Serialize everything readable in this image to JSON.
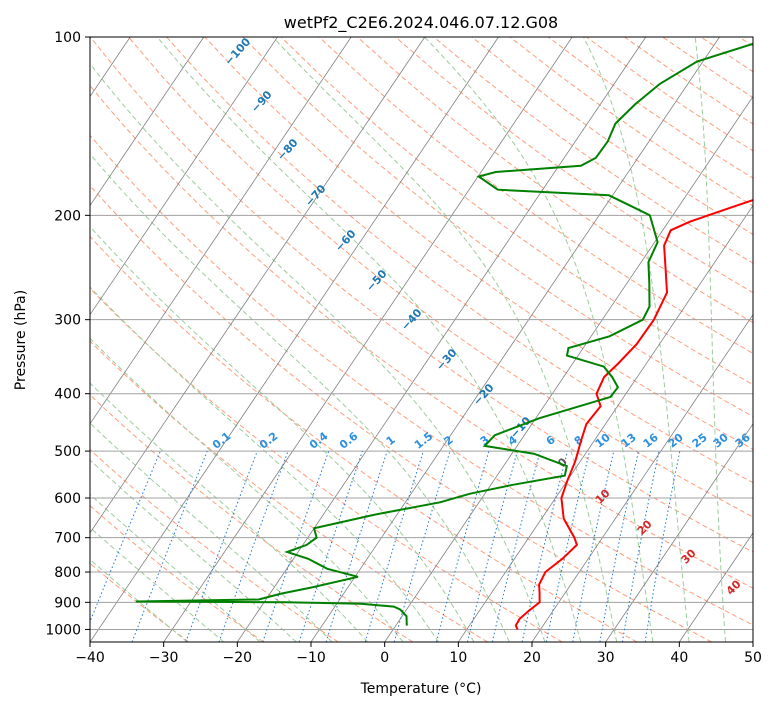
{
  "colors": {
    "temperature": "#ff0000",
    "dewpoint": "#008000",
    "isotherm": "#808080",
    "isobar": "#a0a0a0",
    "dry_adiabat": "#ff9c7a",
    "moist_adiabat": "#9ccc9c",
    "mixing_ratio": "#1f77d4",
    "dry_label": "#1f77b4",
    "moist_label": "#d62728"
  },
  "chart_data": {
    "type": "line",
    "title": "wetPf2_C2E6.2024.046.07.12.G08",
    "xlabel": "Temperature (°C)",
    "ylabel": "Pressure (hPa)",
    "xlim": [
      -40,
      50
    ],
    "ylim": [
      1050,
      100
    ],
    "y_scale": "log",
    "skew_deg_per_decade": 54.3,
    "x_ticks": [
      "−40",
      "−30",
      "−20",
      "−10",
      "0",
      "10",
      "20",
      "30",
      "40",
      "50"
    ],
    "x_tick_values": [
      -40,
      -30,
      -20,
      -10,
      0,
      10,
      20,
      30,
      40,
      50
    ],
    "y_ticks": [
      "100",
      "200",
      "300",
      "400",
      "500",
      "600",
      "700",
      "800",
      "900",
      "1000"
    ],
    "y_tick_values": [
      100,
      200,
      300,
      400,
      500,
      600,
      700,
      800,
      900,
      1000
    ],
    "grid": true,
    "series": [
      {
        "name": "Temperature",
        "points": [
          [
            1000,
            16.9
          ],
          [
            985,
            16.3
          ],
          [
            960,
            16.2
          ],
          [
            930,
            16.7
          ],
          [
            900,
            17.4
          ],
          [
            870,
            16.6
          ],
          [
            840,
            15.7
          ],
          [
            800,
            15.4
          ],
          [
            760,
            16.5
          ],
          [
            720,
            17.2
          ],
          [
            700,
            16.2
          ],
          [
            650,
            13.0
          ],
          [
            600,
            10.8
          ],
          [
            560,
            10.0
          ],
          [
            520,
            9.3
          ],
          [
            480,
            8.2
          ],
          [
            450,
            7.4
          ],
          [
            420,
            7.7
          ],
          [
            400,
            6.0
          ],
          [
            375,
            5.5
          ],
          [
            355,
            6.2
          ],
          [
            330,
            6.9
          ],
          [
            300,
            7.0
          ],
          [
            270,
            6.3
          ],
          [
            245,
            3.8
          ],
          [
            225,
            1.6
          ],
          [
            212,
            1.1
          ],
          [
            205,
            2.9
          ],
          [
            195,
            6.8
          ],
          [
            185,
            11.0
          ],
          [
            175,
            12.3
          ],
          [
            160,
            11.4
          ],
          [
            140,
            11.0
          ],
          [
            125,
            11.1
          ],
          [
            110,
            10.6
          ],
          [
            100,
            10.5
          ]
        ]
      },
      {
        "name": "Dewpoint",
        "points": [
          [
            985,
            1.5
          ],
          [
            950,
            0.6
          ],
          [
            925,
            -0.9
          ],
          [
            915,
            -2.0
          ],
          [
            905,
            -6.7
          ],
          [
            900,
            -17.0
          ],
          [
            897,
            -37.5
          ],
          [
            890,
            -21.0
          ],
          [
            870,
            -18.5
          ],
          [
            850,
            -15.0
          ],
          [
            815,
            -9.6
          ],
          [
            790,
            -14.5
          ],
          [
            760,
            -18.0
          ],
          [
            740,
            -21.5
          ],
          [
            720,
            -19.5
          ],
          [
            700,
            -18.8
          ],
          [
            675,
            -20.0
          ],
          [
            640,
            -13.0
          ],
          [
            610,
            -5.3
          ],
          [
            590,
            -2.0
          ],
          [
            570,
            3.0
          ],
          [
            550,
            9.2
          ],
          [
            530,
            8.6
          ],
          [
            505,
            3.0
          ],
          [
            490,
            -4.4
          ],
          [
            470,
            -4.0
          ],
          [
            440,
            0.5
          ],
          [
            405,
            8.2
          ],
          [
            390,
            8.3
          ],
          [
            375,
            6.6
          ],
          [
            360,
            4.5
          ],
          [
            345,
            -1.5
          ],
          [
            335,
            -2.0
          ],
          [
            320,
            2.5
          ],
          [
            300,
            5.5
          ],
          [
            285,
            5.2
          ],
          [
            260,
            3.0
          ],
          [
            240,
            1.0
          ],
          [
            222,
            0.4
          ],
          [
            200,
            -3.1
          ],
          [
            185,
            -10.5
          ],
          [
            181,
            -26.1
          ],
          [
            172,
            -29.9
          ],
          [
            169,
            -28.0
          ],
          [
            165,
            -17.0
          ],
          [
            160,
            -15.7
          ],
          [
            150,
            -15.6
          ],
          [
            140,
            -16.2
          ],
          [
            130,
            -15.3
          ],
          [
            120,
            -13.8
          ],
          [
            110,
            -10.8
          ],
          [
            100,
            -2.5
          ]
        ]
      }
    ],
    "dry_adiabat_labels": [
      "−100",
      "−90",
      "−80",
      "−70",
      "−60",
      "−50",
      "−40",
      "−30",
      "−20",
      "−10"
    ],
    "mixing_ratio_labels": [
      "0.1",
      "0.2",
      "0.4",
      "0.6",
      "1",
      "1.5",
      "2",
      "3",
      "4",
      "6",
      "8",
      "10",
      "13",
      "16",
      "20",
      "25",
      "30",
      "36"
    ],
    "moist_adiabat_labels": [
      "0",
      "10",
      "20",
      "30",
      "40"
    ]
  }
}
